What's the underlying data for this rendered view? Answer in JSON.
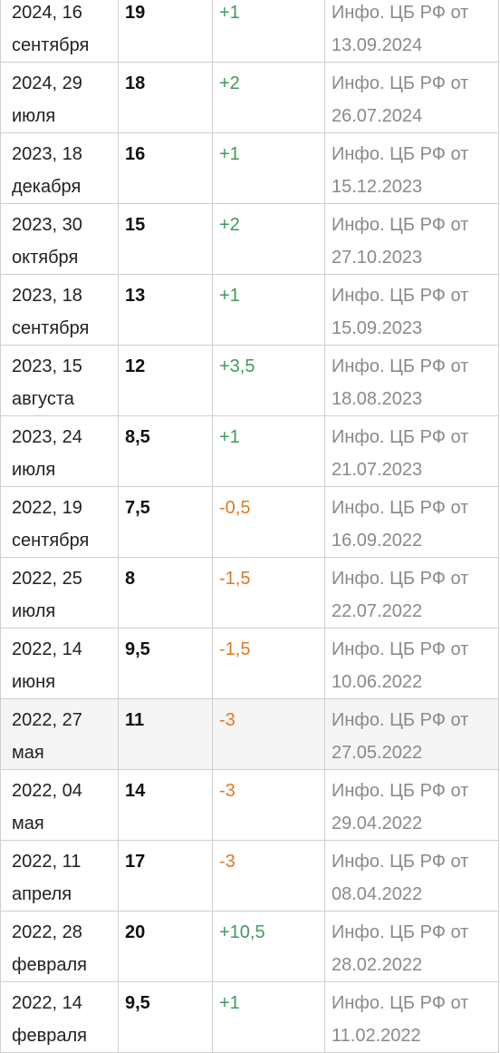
{
  "table": {
    "rows": [
      {
        "date": "2024, 16 сентября",
        "rate": "19",
        "change": "+1",
        "direction": "up",
        "source": "Инфо. ЦБ РФ от 13.09.2024"
      },
      {
        "date": "2024, 29 июля",
        "rate": "18",
        "change": "+2",
        "direction": "up",
        "source": "Инфо. ЦБ РФ от 26.07.2024"
      },
      {
        "date": "2023, 18 декабря",
        "rate": "16",
        "change": "+1",
        "direction": "up",
        "source": "Инфо. ЦБ РФ от 15.12.2023"
      },
      {
        "date": "2023, 30 октября",
        "rate": "15",
        "change": "+2",
        "direction": "up",
        "source": "Инфо. ЦБ РФ от 27.10.2023"
      },
      {
        "date": "2023, 18 сентября",
        "rate": "13",
        "change": "+1",
        "direction": "up",
        "source": "Инфо. ЦБ РФ от 15.09.2023"
      },
      {
        "date": "2023, 15 августа",
        "rate": "12",
        "change": "+3,5",
        "direction": "up",
        "source": "Инфо. ЦБ РФ от 18.08.2023"
      },
      {
        "date": "2023, 24 июля",
        "rate": "8,5",
        "change": "+1",
        "direction": "up",
        "source": "Инфо. ЦБ РФ от 21.07.2023"
      },
      {
        "date": "2022, 19 сентября",
        "rate": "7,5",
        "change": "-0,5",
        "direction": "down",
        "source": "Инфо. ЦБ РФ от 16.09.2022"
      },
      {
        "date": "2022, 25 июля",
        "rate": "8",
        "change": "-1,5",
        "direction": "down",
        "source": "Инфо. ЦБ РФ от 22.07.2022"
      },
      {
        "date": "2022, 14 июня",
        "rate": "9,5",
        "change": "-1,5",
        "direction": "down",
        "source": "Инфо. ЦБ РФ от 10.06.2022"
      },
      {
        "date": "2022, 27 мая",
        "rate": "11",
        "change": "-3",
        "direction": "down",
        "source": "Инфо. ЦБ РФ от 27.05.2022",
        "highlight": true
      },
      {
        "date": "2022, 04 мая",
        "rate": "14",
        "change": "-3",
        "direction": "down",
        "source": "Инфо. ЦБ РФ от 29.04.2022"
      },
      {
        "date": "2022, 11 апреля",
        "rate": "17",
        "change": "-3",
        "direction": "down",
        "source": "Инфо. ЦБ РФ от 08.04.2022"
      },
      {
        "date": "2022, 28 февраля",
        "rate": "20",
        "change": "+10,5",
        "direction": "up",
        "source": "Инфо. ЦБ РФ от 28.02.2022"
      },
      {
        "date": "2022, 14 февраля",
        "rate": "9,5",
        "change": "+1",
        "direction": "up",
        "source": "Инфо. ЦБ РФ от 11.02.2022"
      }
    ],
    "colors": {
      "increase": "#3f9a5c",
      "decrease": "#e07a1f",
      "source_text": "#8a8a8a",
      "border": "#cfcfcf",
      "highlight_row": "#f5f5f5"
    }
  }
}
